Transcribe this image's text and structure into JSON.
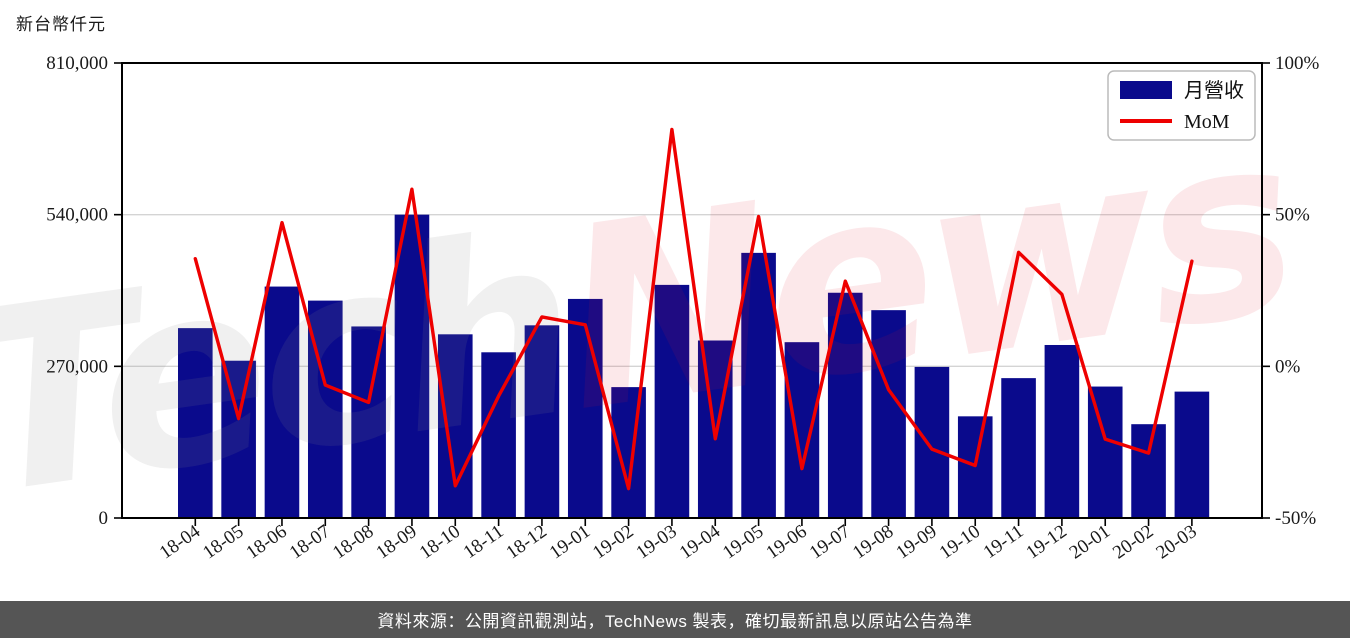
{
  "title": "新台幣仟元",
  "legend": {
    "bar_label": "月營收",
    "line_label": "MoM"
  },
  "watermark": {
    "part1": "Tech",
    "part2": "News"
  },
  "footer": {
    "text": "資料來源：公開資訊觀測站，TechNews 製表，確切最新訊息以原站公告為準"
  },
  "colors": {
    "bar": "#0a0a8c",
    "line": "#ee0000",
    "grid": "#d4d4d4",
    "axis": "#000000",
    "tick_label": "#1a1a1a",
    "legend_border": "#bbbbbb",
    "footer_bg": "#555555",
    "watermark_gray": "#8a8a8a",
    "watermark_red": "#dd2233"
  },
  "chart_data": {
    "type": "bar",
    "title": "新台幣仟元",
    "categories": [
      "18-04",
      "18-05",
      "18-06",
      "18-07",
      "18-08",
      "18-09",
      "18-10",
      "18-11",
      "18-12",
      "19-01",
      "19-02",
      "19-03",
      "19-04",
      "19-05",
      "19-06",
      "19-07",
      "19-08",
      "19-09",
      "19-10",
      "19-11",
      "19-12",
      "20-01",
      "20-02",
      "20-03"
    ],
    "series": [
      {
        "name": "月營收",
        "type": "bar",
        "axis": "left",
        "unit": "新台幣仟元",
        "values": [
          338000,
          280000,
          412000,
          387000,
          341000,
          540000,
          327000,
          295000,
          343000,
          390000,
          233000,
          415000,
          316000,
          472000,
          313000,
          401000,
          370000,
          269000,
          181000,
          249000,
          308000,
          234000,
          167000,
          225000
        ]
      },
      {
        "name": "MoM",
        "type": "line",
        "axis": "right",
        "unit": "%",
        "values": [
          35.5,
          -17.2,
          47.4,
          -6.2,
          -11.9,
          58.4,
          -39.4,
          -9.8,
          16.3,
          13.7,
          -40.3,
          78.1,
          -23.9,
          49.4,
          -33.7,
          28.1,
          -7.7,
          -27.3,
          -32.7,
          37.6,
          23.7,
          -24.0,
          -28.6,
          34.7
        ]
      }
    ],
    "y_left": {
      "ticks": [
        "0",
        "270,000",
        "540,000",
        "810,000"
      ],
      "tick_values": [
        0,
        270000,
        540000,
        810000
      ],
      "range": [
        0,
        810000
      ]
    },
    "y_right": {
      "ticks": [
        "-50%",
        "0%",
        "50%",
        "100%"
      ],
      "tick_values": [
        -50,
        0,
        50,
        100
      ],
      "range": [
        -50,
        100
      ]
    },
    "gridlines_at_left_values": [
      270000,
      540000
    ],
    "grid": true,
    "legend_position": "top-right"
  }
}
